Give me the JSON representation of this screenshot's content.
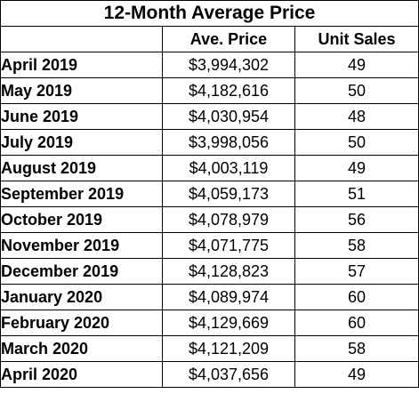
{
  "chart_data": {
    "type": "table",
    "title": "12-Month Average Price",
    "columns": [
      "",
      "Ave. Price",
      "Unit Sales"
    ],
    "rows": [
      {
        "month": "April 2019",
        "price": "$3,994,302",
        "units": "49"
      },
      {
        "month": "May 2019",
        "price": "$4,182,616",
        "units": "50"
      },
      {
        "month": "June 2019",
        "price": "$4,030,954",
        "units": "48"
      },
      {
        "month": "July 2019",
        "price": "$3,998,056",
        "units": "50"
      },
      {
        "month": "August 2019",
        "price": "$4,003,119",
        "units": "49"
      },
      {
        "month": "September 2019",
        "price": "$4,059,173",
        "units": "51"
      },
      {
        "month": "October 2019",
        "price": "$4,078,979",
        "units": "56"
      },
      {
        "month": "November 2019",
        "price": "$4,071,775",
        "units": "58"
      },
      {
        "month": "December 2019",
        "price": "$4,128,823",
        "units": "57"
      },
      {
        "month": "January 2020",
        "price": "$4,089,974",
        "units": "60"
      },
      {
        "month": "February 2020",
        "price": "$4,129,669",
        "units": "60"
      },
      {
        "month": "March 2020",
        "price": "$4,121,209",
        "units": "58"
      },
      {
        "month": "April 2020",
        "price": "$4,037,656",
        "units": "49"
      }
    ]
  }
}
